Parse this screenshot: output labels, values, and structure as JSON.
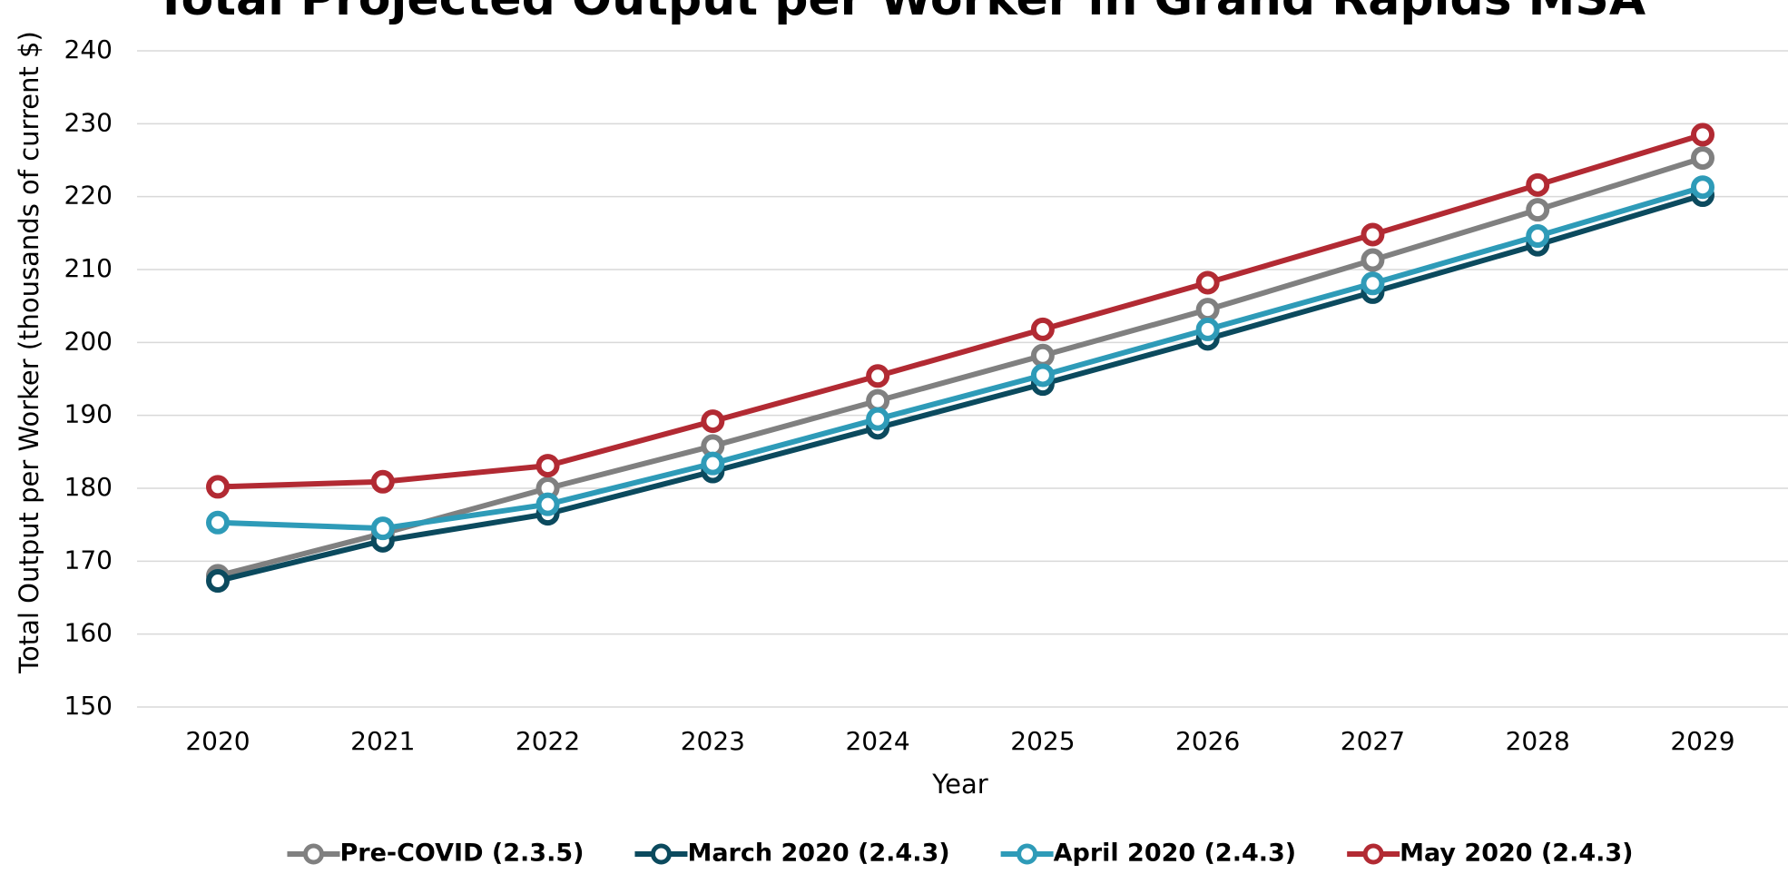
{
  "chart_data": {
    "type": "line",
    "title": "Total Projected Output per Worker in Grand Rapids MSA",
    "x_label": "Year",
    "y_label": "Total Output per Worker (thousands of current $)",
    "categories": [
      "2020",
      "2021",
      "2022",
      "2023",
      "2024",
      "2025",
      "2026",
      "2027",
      "2028",
      "2029"
    ],
    "series": [
      {
        "name": "Pre-COVID (2.3.5)",
        "color": "#808080",
        "values": [
          168.0,
          173.8,
          180.0,
          185.8,
          192.0,
          198.2,
          204.5,
          211.3,
          218.2,
          225.3
        ]
      },
      {
        "name": "March 2020 (2.4.3)",
        "color": "#0b4a5e",
        "values": [
          167.3,
          172.8,
          176.5,
          182.3,
          188.3,
          194.3,
          200.5,
          206.9,
          213.4,
          220.2
        ]
      },
      {
        "name": "April 2020 (2.4.3)",
        "color": "#2e9bb8",
        "values": [
          175.3,
          174.5,
          177.8,
          183.4,
          189.5,
          195.5,
          201.8,
          208.1,
          214.6,
          221.3
        ]
      },
      {
        "name": "May 2020 (2.4.3)",
        "color": "#b22a33",
        "values": [
          180.2,
          180.9,
          183.1,
          189.2,
          195.4,
          201.8,
          208.2,
          214.8,
          221.6,
          228.5
        ]
      }
    ],
    "ylim": [
      150,
      240
    ],
    "yticks": [
      150,
      160,
      170,
      180,
      190,
      200,
      210,
      220,
      230,
      240
    ],
    "grid": true,
    "legend": "bottom"
  }
}
